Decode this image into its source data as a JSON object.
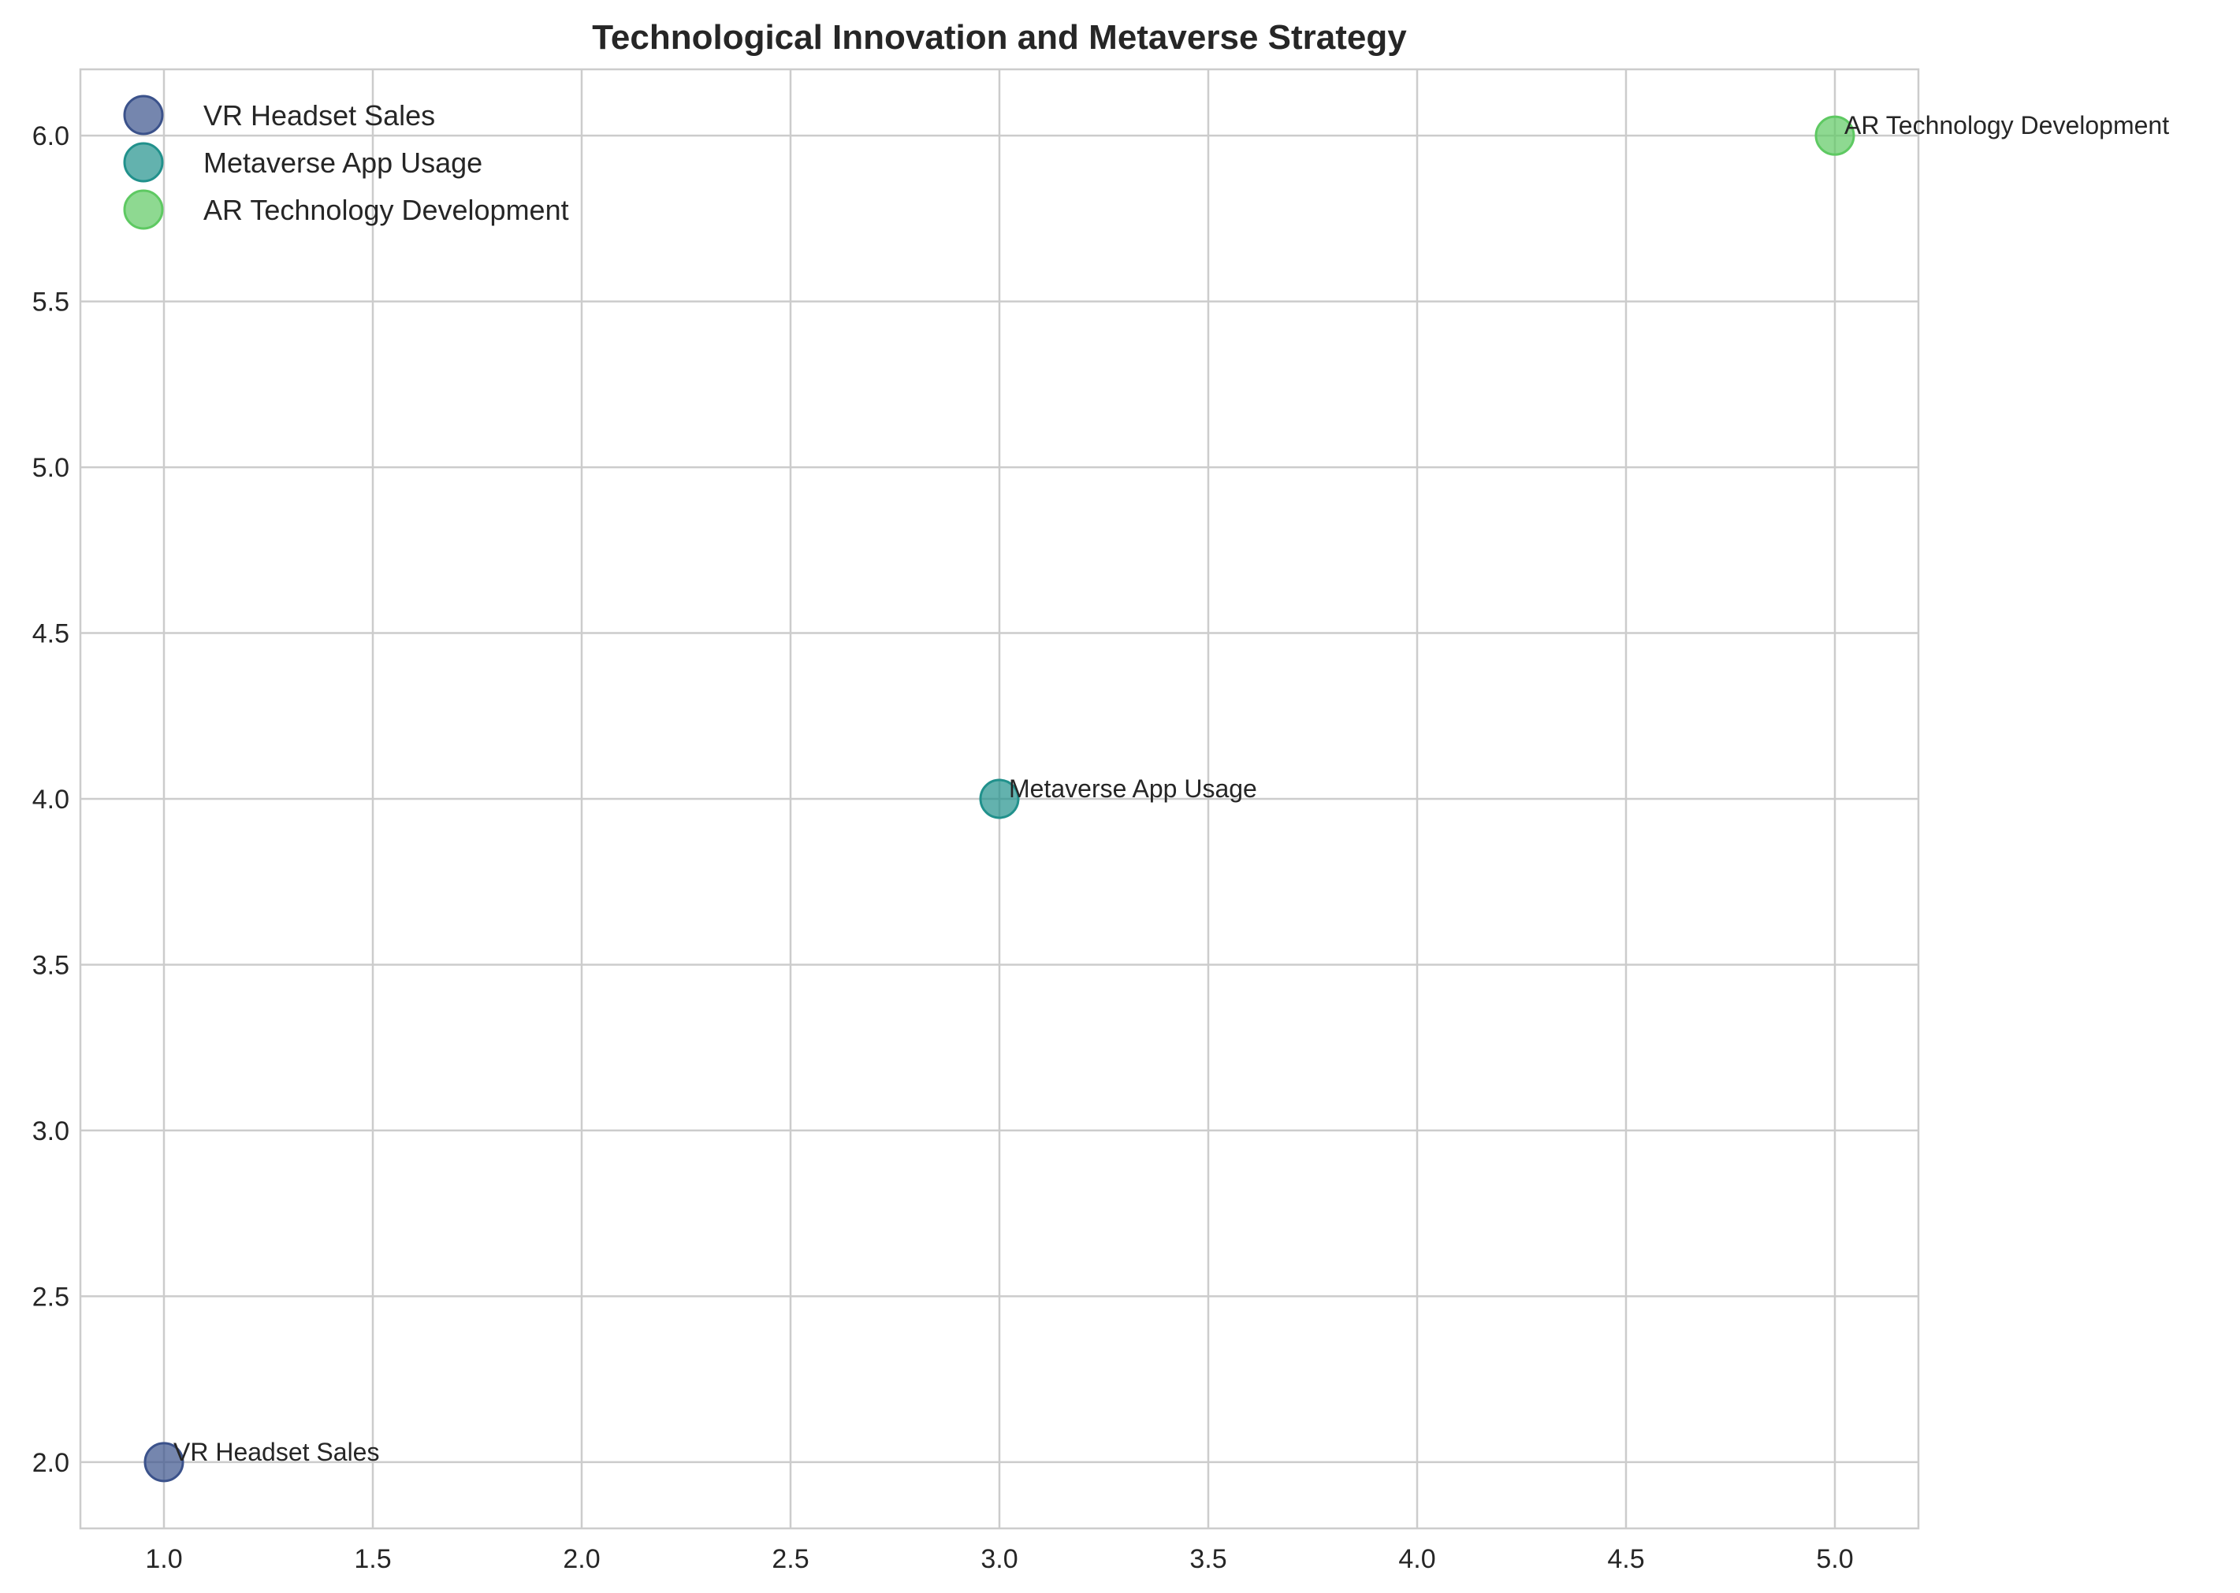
{
  "chart_data": {
    "type": "scatter",
    "title": "Technological Innovation and Metaverse Strategy",
    "xlabel": "",
    "ylabel": "",
    "xlim": [
      0.8,
      5.2
    ],
    "ylim": [
      1.8,
      6.2
    ],
    "x_ticks": [
      1.0,
      1.5,
      2.0,
      2.5,
      3.0,
      3.5,
      4.0,
      4.5,
      5.0
    ],
    "x_tick_labels": [
      "1.0",
      "1.5",
      "2.0",
      "2.5",
      "3.0",
      "3.5",
      "4.0",
      "4.5",
      "5.0"
    ],
    "y_ticks": [
      2.0,
      2.5,
      3.0,
      3.5,
      4.0,
      4.5,
      5.0,
      5.5,
      6.0
    ],
    "y_tick_labels": [
      "2.0",
      "2.5",
      "3.0",
      "3.5",
      "4.0",
      "4.5",
      "5.0",
      "5.5",
      "6.0"
    ],
    "grid": true,
    "legend_position": "top-left",
    "series": [
      {
        "name": "VR Headset Sales",
        "x": [
          1
        ],
        "y": [
          2
        ],
        "color": "#3b528b",
        "annotation": "VR Headset Sales"
      },
      {
        "name": "Metaverse App Usage",
        "x": [
          3
        ],
        "y": [
          4
        ],
        "color": "#21918c",
        "annotation": "Metaverse App Usage"
      },
      {
        "name": "AR Technology Development",
        "x": [
          5
        ],
        "y": [
          6
        ],
        "color": "#5ec962",
        "annotation": "AR Technology Development"
      }
    ]
  }
}
